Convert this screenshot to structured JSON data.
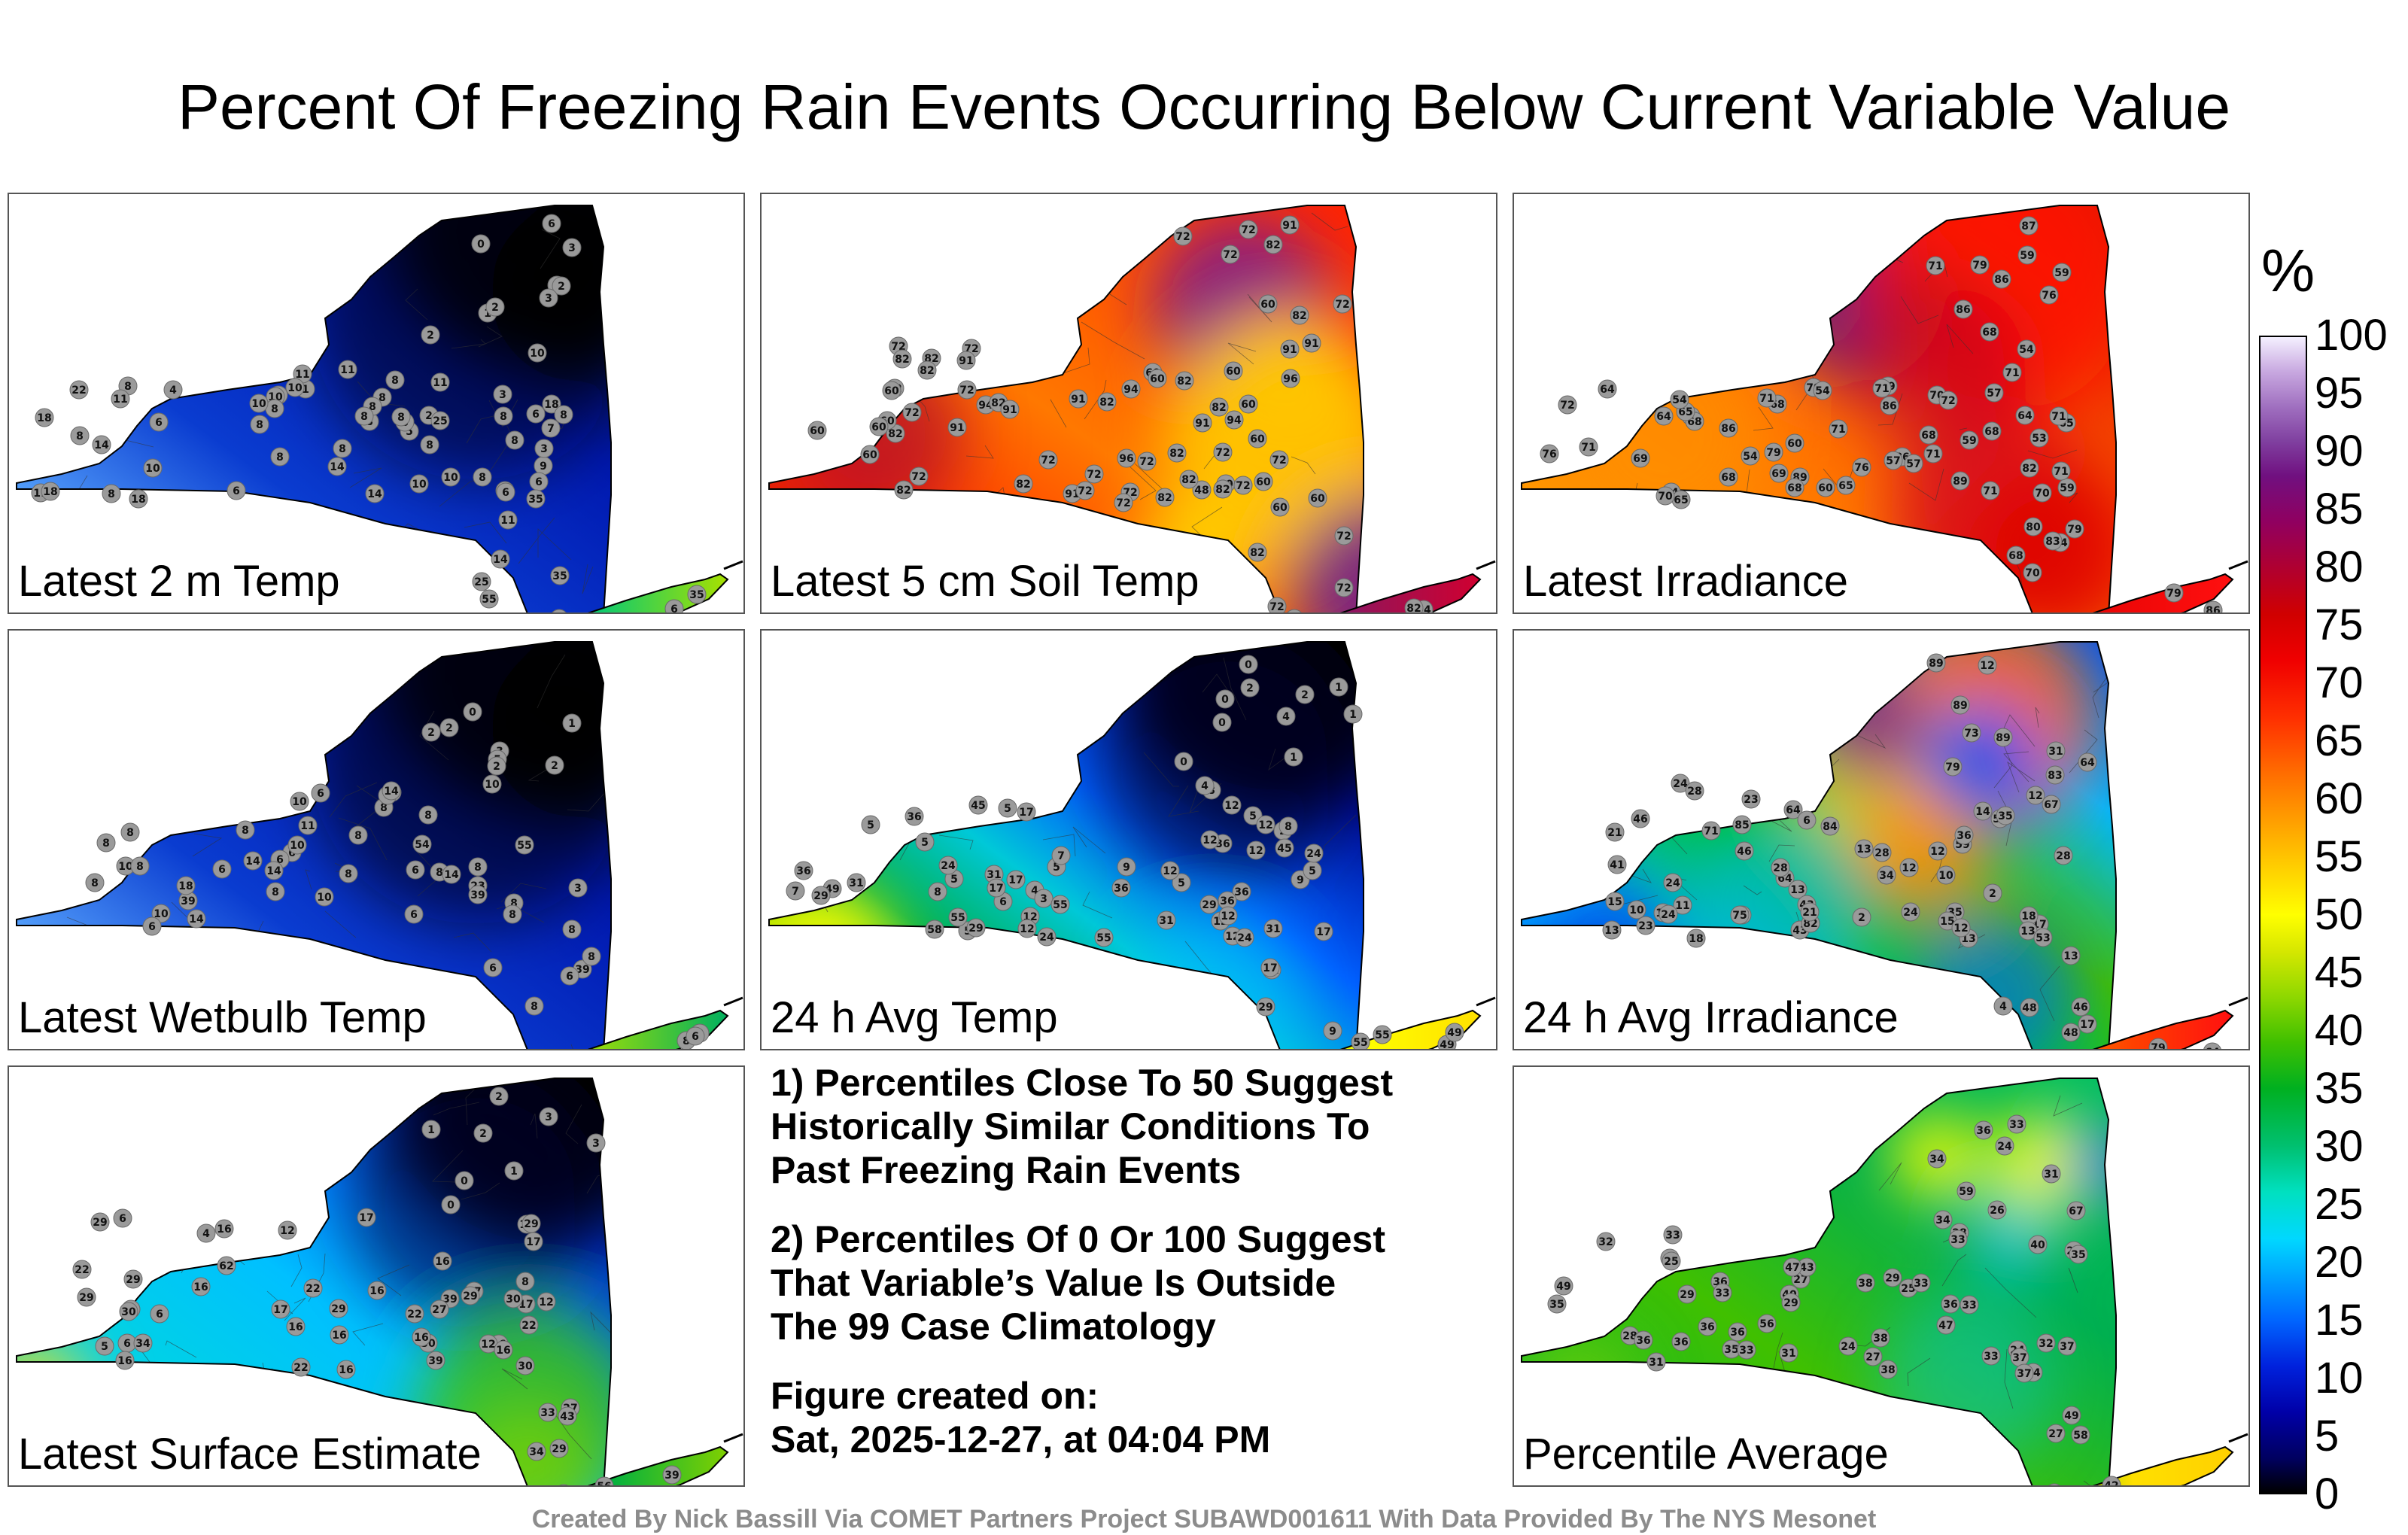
{
  "title": "Percent Of Freezing Rain Events Occurring Below Current Variable Value",
  "panels": [
    {
      "label": "Latest 2 m Temp",
      "scheme": "blue_n",
      "stations": [
        "2",
        "0",
        "2",
        "1",
        "2",
        "3",
        "3",
        "2",
        "6",
        "2",
        "9",
        "6",
        "3",
        "5",
        "6",
        "4",
        "3",
        "4",
        "1",
        "7",
        "10",
        "8",
        "8",
        "11",
        "10",
        "10",
        "10",
        "11",
        "10",
        "8",
        "8",
        "8",
        "6",
        "8",
        "6",
        "8",
        "18",
        "11",
        "8",
        "10",
        "8",
        "10",
        "8",
        "11",
        "8",
        "8",
        "8",
        "8",
        "6",
        "6",
        "25",
        "18",
        "22",
        "8",
        "8",
        "8",
        "8",
        "6",
        "14",
        "11",
        "14",
        "18",
        "18",
        "14",
        "11",
        "14",
        "25",
        "35",
        "35",
        "55",
        "46",
        "35",
        "8",
        "8",
        "6"
      ]
    },
    {
      "label": "Latest 5 cm Soil Temp",
      "scheme": "hot",
      "stations": [
        "72",
        "72",
        "82",
        "60",
        "91",
        "72",
        "82",
        "72",
        "91",
        "96",
        "72",
        "94",
        "72",
        "82",
        "72",
        "60",
        "91",
        "94",
        "82",
        "82",
        "82",
        "48",
        "91",
        "82",
        "60",
        "60",
        "72",
        "72",
        "72",
        "91",
        "60",
        "72",
        "82",
        "91",
        "60",
        "72",
        "91",
        "82",
        "60",
        "72",
        "72",
        "60",
        "82",
        "82",
        "72",
        "60",
        "82",
        "72",
        "60",
        "60",
        "60",
        "96",
        "82",
        "82",
        "82",
        "94",
        "91",
        "72",
        "60",
        "72",
        "72",
        "91",
        "82",
        "60",
        "72",
        "72",
        "60",
        "82",
        "72",
        "48",
        "60",
        "94",
        "82",
        "60"
      ]
    },
    {
      "label": "Latest Irradiance",
      "scheme": "irr",
      "stations": [
        "71",
        "79",
        "68",
        "76",
        "59",
        "86",
        "59",
        "86",
        "87",
        "54",
        "54",
        "79",
        "86",
        "89",
        "53",
        "54",
        "57",
        "64",
        "76",
        "89",
        "54",
        "60",
        "86",
        "70",
        "68",
        "68",
        "59",
        "57",
        "64",
        "71",
        "79",
        "82",
        "89",
        "86",
        "71",
        "70",
        "76",
        "65",
        "64",
        "71",
        "71",
        "65",
        "71",
        "72",
        "57",
        "68",
        "71",
        "76",
        "68",
        "69",
        "60",
        "65",
        "68",
        "71",
        "72",
        "65",
        "69",
        "71",
        "71",
        "54",
        "68",
        "59",
        "70",
        "68",
        "64",
        "83",
        "80",
        "79",
        "70",
        "86",
        "79",
        "78",
        "71",
        "64"
      ]
    },
    {
      "label": "Latest Wetbulb Temp",
      "scheme": "blue_w",
      "stations": [
        "2",
        "0",
        "2",
        "1",
        "2",
        "3",
        "5",
        "2",
        "6",
        "8",
        "3",
        "8",
        "10",
        "8",
        "6",
        "10",
        "8",
        "11",
        "10",
        "10",
        "10",
        "8",
        "8",
        "6",
        "8",
        "6",
        "6",
        "8",
        "14",
        "8",
        "8",
        "8",
        "6",
        "6",
        "8",
        "39",
        "23",
        "8",
        "8",
        "8",
        "8",
        "6",
        "14",
        "10",
        "14",
        "18",
        "14",
        "14",
        "39",
        "54",
        "55",
        "39",
        "8",
        "8",
        "6",
        "6",
        "8",
        "10",
        "8",
        "6"
      ]
    },
    {
      "label": "24 h Avg Temp",
      "scheme": "avgtemp",
      "stations": [
        "0",
        "0",
        "1",
        "1",
        "2",
        "1",
        "0",
        "2",
        "0",
        "4",
        "5",
        "8",
        "6",
        "5",
        "2",
        "4",
        "17",
        "12",
        "9",
        "5",
        "8",
        "4",
        "5",
        "3",
        "36",
        "31",
        "29",
        "36",
        "17",
        "12",
        "12",
        "5",
        "8",
        "5",
        "45",
        "31",
        "36",
        "31",
        "12",
        "12",
        "9",
        "5",
        "5",
        "45",
        "31",
        "36",
        "17",
        "12",
        "12",
        "7",
        "5",
        "55",
        "36",
        "49",
        "29",
        "24",
        "24",
        "12",
        "12",
        "7",
        "55",
        "55",
        "58",
        "36",
        "29",
        "24",
        "12",
        "9",
        "12",
        "17",
        "17",
        "29",
        "24",
        "31",
        "49",
        "55",
        "49",
        "55"
      ]
    },
    {
      "label": "24 h Avg Irradiance",
      "scheme": "avgirr",
      "stations": [
        "89",
        "73",
        "83",
        "89",
        "31",
        "64",
        "79",
        "89",
        "12",
        "57",
        "64",
        "17",
        "11",
        "18",
        "64",
        "12",
        "59",
        "85",
        "2",
        "10",
        "13",
        "13",
        "23",
        "24",
        "2",
        "6",
        "43",
        "35",
        "46",
        "12",
        "13",
        "14",
        "24",
        "28",
        "43",
        "84",
        "82",
        "12",
        "67",
        "13",
        "13",
        "21",
        "35",
        "46",
        "28",
        "57",
        "75",
        "71",
        "36",
        "18",
        "24",
        "21",
        "10",
        "23",
        "13",
        "28",
        "15",
        "34",
        "15",
        "41",
        "24",
        "28",
        "12",
        "17",
        "13",
        "4",
        "53",
        "48",
        "46",
        "70",
        "79",
        "48",
        "64",
        "71"
      ]
    },
    {
      "label": "Latest Surface Estimate",
      "scheme": "surface",
      "stations": [
        "1",
        "0",
        "1",
        "2",
        "3",
        "0",
        "3",
        "2",
        "4",
        "6",
        "7",
        "6",
        "5",
        "12",
        "16",
        "8",
        "6",
        "16",
        "30",
        "22",
        "17",
        "29",
        "22",
        "17",
        "16",
        "16",
        "17",
        "29",
        "12",
        "29",
        "12",
        "22",
        "16",
        "16",
        "16",
        "30",
        "16",
        "29",
        "34",
        "16",
        "17",
        "16",
        "22",
        "27",
        "16",
        "30",
        "62",
        "39",
        "39",
        "29",
        "22",
        "27",
        "30",
        "16",
        "29",
        "33",
        "27",
        "34",
        "29",
        "43",
        "43",
        "56",
        "39",
        "39"
      ]
    },
    {
      "label": "Percentile Average",
      "scheme": "avg",
      "stations": [
        "34",
        "59",
        "36",
        "33",
        "31",
        "26",
        "67",
        "24",
        "33",
        "36",
        "33",
        "36",
        "24",
        "22",
        "31",
        "3",
        "24",
        "25",
        "27",
        "36",
        "35",
        "28",
        "32",
        "25",
        "35",
        "36",
        "34",
        "37",
        "38",
        "31",
        "40",
        "28",
        "33",
        "32",
        "33",
        "38",
        "35",
        "27",
        "40",
        "38",
        "37",
        "29",
        "36",
        "29",
        "43",
        "47",
        "33",
        "36",
        "47",
        "33",
        "29",
        "33",
        "49",
        "56",
        "58",
        "49",
        "34",
        "37",
        "27",
        "42",
        "33",
        "31",
        "45"
      ]
    }
  ],
  "notes": [
    "1) Percentiles Close To 50 Suggest\nHistorically Similar Conditions To\nPast Freezing Rain Events",
    "2) Percentiles Of 0 Or 100 Suggest\nThat Variable’s Value Is Outside\nThe 99 Case Climatology",
    "Figure created on:\nSat, 2025-12-27, at 04:04 PM"
  ],
  "colorbar": {
    "unit": "%",
    "ticks": [
      "100",
      "95",
      "90",
      "85",
      "80",
      "75",
      "70",
      "65",
      "60",
      "55",
      "50",
      "45",
      "40",
      "35",
      "30",
      "25",
      "20",
      "15",
      "10",
      "5",
      "0"
    ]
  },
  "footer": "Created By Nick Bassill Via COMET Partners Project SUBAWD001611 With Data Provided By The NYS Mesonet"
}
